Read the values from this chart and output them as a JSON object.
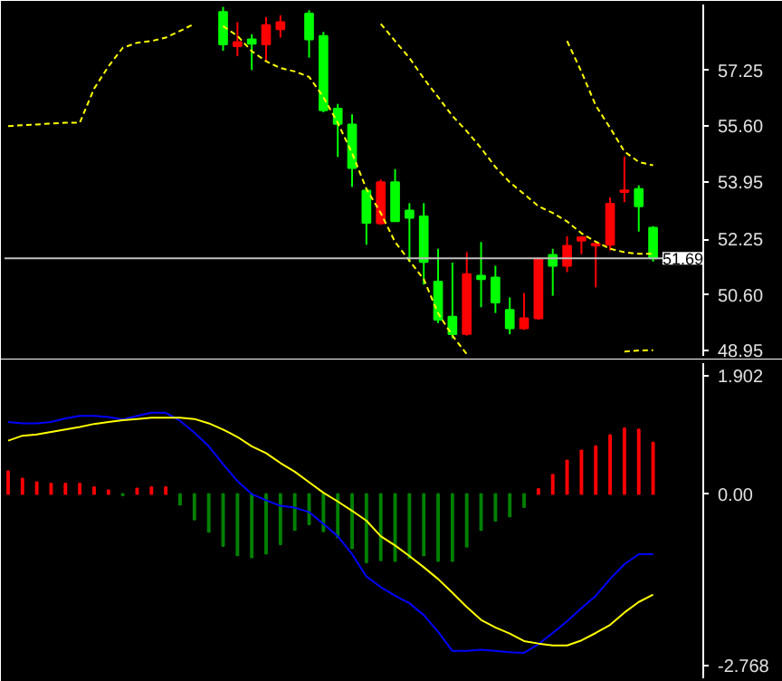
{
  "chart_data": [
    {
      "type": "candlestick",
      "categories": [
        null,
        null,
        null,
        null,
        null,
        null,
        null,
        null,
        null,
        null,
        null,
        null,
        null,
        null,
        null,
        null,
        null,
        null,
        null,
        null,
        null,
        null,
        null,
        null,
        null,
        null,
        null,
        null,
        null,
        null,
        null,
        null,
        null,
        null,
        null,
        null,
        null,
        null,
        null,
        null,
        null,
        null,
        null,
        null,
        null,
        null
      ],
      "ohlc": [
        null,
        null,
        null,
        null,
        null,
        null,
        null,
        null,
        null,
        null,
        null,
        null,
        null,
        null,
        null,
        [
          58.98,
          59.13,
          57.83,
          58.02
        ],
        [
          57.97,
          58.68,
          57.67,
          58.09
        ],
        [
          58.17,
          58.32,
          57.26,
          58.04
        ],
        [
          58.02,
          58.83,
          57.52,
          58.59
        ],
        [
          58.47,
          58.88,
          58.22,
          58.68
        ],
        null,
        [
          58.93,
          59.03,
          57.63,
          58.17
        ],
        [
          58.27,
          58.39,
          56.01,
          56.07
        ],
        [
          56.12,
          56.26,
          54.69,
          55.67
        ],
        [
          55.65,
          55.95,
          53.8,
          54.36
        ],
        [
          53.69,
          53.77,
          52.09,
          52.74
        ],
        [
          52.73,
          54.02,
          52.68,
          53.94
        ],
        [
          53.94,
          54.33,
          52.79,
          52.79
        ],
        [
          53.1,
          53.32,
          51.58,
          52.89
        ],
        [
          52.93,
          53.32,
          50.91,
          51.58
        ],
        [
          51.0,
          51.97,
          49.77,
          49.87
        ],
        [
          49.96,
          51.56,
          49.32,
          49.44
        ],
        [
          49.45,
          51.87,
          49.4,
          51.22
        ],
        [
          51.17,
          52.17,
          50.24,
          51.07
        ],
        [
          51.12,
          51.47,
          50.07,
          50.38
        ],
        [
          50.16,
          50.53,
          49.44,
          49.62
        ],
        [
          49.62,
          50.66,
          49.57,
          49.91
        ],
        [
          49.91,
          51.71,
          49.87,
          51.67
        ],
        [
          51.79,
          51.97,
          50.58,
          51.47
        ],
        [
          51.47,
          52.34,
          51.28,
          52.06
        ],
        [
          52.21,
          52.34,
          51.81,
          52.31
        ],
        [
          52.07,
          52.18,
          50.83,
          52.12
        ],
        [
          52.09,
          53.49,
          51.92,
          53.3
        ],
        [
          53.65,
          54.7,
          53.35,
          53.7
        ],
        [
          53.74,
          53.85,
          52.48,
          53.23
        ],
        [
          52.59,
          52.64,
          51.59,
          51.69
        ]
      ],
      "colors": [
        null,
        null,
        null,
        null,
        null,
        null,
        null,
        null,
        null,
        null,
        null,
        null,
        null,
        null,
        null,
        "#00ff00",
        "#ff0000",
        "#00ff00",
        "#ff0000",
        "#ff0000",
        null,
        "#00ff00",
        "#00ff00",
        "#00ff00",
        "#00ff00",
        "#00ff00",
        "#ff0000",
        "#00ff00",
        "#00ff00",
        "#00ff00",
        "#00ff00",
        "#00ff00",
        "#ff0000",
        "#00ff00",
        "#00ff00",
        "#00ff00",
        "#ff0000",
        "#ff0000",
        "#00ff00",
        "#ff0000",
        "#ff0000",
        "#ff0000",
        "#ff0000",
        "#ff0000",
        "#00ff00",
        "#00ff00"
      ],
      "series": [
        {
          "type": "line",
          "color": "#ffff00",
          "line_style": "dashed",
          "values": [
            55.6,
            55.63,
            55.65,
            55.68,
            55.7,
            55.7,
            56.71,
            57.37,
            57.92,
            58.07,
            58.12,
            58.22,
            58.42,
            58.63,
            null,
            58.56,
            58.27,
            57.82,
            57.52,
            57.32,
            57.22,
            57.06,
            56.46,
            55.7,
            54.8,
            53.74,
            53.03,
            52.17,
            51.62,
            51.07,
            50.06,
            49.4,
            48.85,
            null,
            null,
            null,
            null,
            null,
            null,
            null,
            null,
            null,
            null,
            null,
            null,
            null
          ]
        },
        {
          "type": "line",
          "color": "#ffff00",
          "line_style": "dashed",
          "values": [
            null,
            null,
            null,
            null,
            null,
            null,
            null,
            null,
            null,
            null,
            null,
            null,
            null,
            null,
            null,
            null,
            null,
            null,
            null,
            null,
            null,
            null,
            null,
            null,
            null,
            null,
            58.63,
            58.12,
            57.62,
            57.01,
            56.46,
            55.9,
            55.45,
            54.95,
            54.39,
            53.94,
            53.59,
            53.23,
            53.03,
            52.78,
            52.43,
            52.18,
            51.97,
            51.87,
            51.82,
            51.82
          ]
        },
        {
          "type": "line",
          "color": "#ffff00",
          "line_style": "dashed",
          "values": [
            null,
            null,
            null,
            null,
            null,
            null,
            null,
            null,
            null,
            null,
            null,
            null,
            null,
            null,
            null,
            null,
            null,
            null,
            null,
            null,
            null,
            null,
            null,
            null,
            null,
            null,
            null,
            null,
            null,
            null,
            null,
            null,
            null,
            null,
            null,
            null,
            null,
            null,
            null,
            58.12,
            57.21,
            56.21,
            55.55,
            54.85,
            54.54,
            54.44
          ]
        },
        {
          "type": "line",
          "color": "#ffff00",
          "line_style": "dashed",
          "values": [
            null,
            null,
            null,
            null,
            null,
            null,
            null,
            null,
            null,
            null,
            null,
            null,
            null,
            null,
            null,
            null,
            null,
            null,
            null,
            null,
            null,
            null,
            null,
            null,
            null,
            null,
            null,
            null,
            null,
            null,
            null,
            null,
            null,
            null,
            null,
            null,
            null,
            null,
            null,
            null,
            null,
            null,
            null,
            48.93,
            48.96,
            48.97
          ]
        }
      ],
      "ylim": [
        48.8,
        59.2
      ],
      "yticks": [
        {
          "value": 48.95,
          "label": "48.95"
        },
        {
          "value": 50.6,
          "label": "50.60"
        },
        {
          "value": 52.25,
          "label": "52.25"
        },
        {
          "value": 53.95,
          "label": "53.95"
        },
        {
          "value": 55.6,
          "label": "55.60"
        },
        {
          "value": 57.25,
          "label": "57.25"
        }
      ],
      "ref_lines": [
        {
          "axis": "y",
          "value": 51.69,
          "label": "51.69",
          "color": "#c0c0c0"
        }
      ],
      "tick_labels": "y",
      "grid": false
    },
    {
      "type": "bar",
      "categories": [
        null,
        null,
        null,
        null,
        null,
        null,
        null,
        null,
        null,
        null,
        null,
        null,
        null,
        null,
        null,
        null,
        null,
        null,
        null,
        null,
        null,
        null,
        null,
        null,
        null,
        null,
        null,
        null,
        null,
        null,
        null,
        null,
        null,
        null,
        null,
        null,
        null,
        null,
        null,
        null,
        null,
        null,
        null,
        null,
        null,
        null
      ],
      "values": [
        0.37,
        0.25,
        0.19,
        0.17,
        0.17,
        0.17,
        0.11,
        0.06,
        -0.02,
        0.09,
        0.11,
        0.11,
        -0.17,
        -0.41,
        -0.61,
        -0.84,
        -0.99,
        -1.02,
        -0.96,
        -0.81,
        -0.58,
        -0.49,
        -0.6,
        -0.7,
        -0.87,
        -1.1,
        -1.07,
        -1.08,
        -1.03,
        -0.99,
        -1.08,
        -1.08,
        -0.85,
        -0.58,
        -0.43,
        -0.36,
        -0.21,
        0.08,
        0.31,
        0.54,
        0.7,
        0.77,
        0.95,
        1.06,
        1.04,
        0.83
      ],
      "colors": [
        "#ff0000",
        "#ff0000",
        "#ff0000",
        "#ff0000",
        "#ff0000",
        "#ff0000",
        "#ff0000",
        "#ff0000",
        "#008000",
        "#ff0000",
        "#ff0000",
        "#ff0000",
        "#008000",
        "#008000",
        "#008000",
        "#008000",
        "#008000",
        "#008000",
        "#008000",
        "#008000",
        "#008000",
        "#008000",
        "#008000",
        "#008000",
        "#008000",
        "#008000",
        "#008000",
        "#008000",
        "#008000",
        "#008000",
        "#008000",
        "#008000",
        "#008000",
        "#008000",
        "#008000",
        "#008000",
        "#008000",
        "#ff0000",
        "#ff0000",
        "#ff0000",
        "#ff0000",
        "#ff0000",
        "#ff0000",
        "#ff0000",
        "#ff0000",
        "#ff0000"
      ],
      "series": [
        {
          "type": "line",
          "color": "#0000ff",
          "line_style": "solid",
          "values": [
            1.16,
            1.14,
            1.14,
            1.16,
            1.22,
            1.26,
            1.26,
            1.24,
            1.2,
            1.26,
            1.31,
            1.31,
            1.18,
            0.99,
            0.77,
            0.48,
            0.21,
            0.0,
            -0.1,
            -0.19,
            -0.22,
            -0.29,
            -0.48,
            -0.68,
            -0.97,
            -1.33,
            -1.5,
            -1.64,
            -1.76,
            -1.95,
            -2.22,
            -2.53,
            -2.53,
            -2.51,
            -2.53,
            -2.55,
            -2.56,
            -2.42,
            -2.24,
            -2.05,
            -1.84,
            -1.64,
            -1.37,
            -1.13,
            -0.97,
            -0.97
          ]
        },
        {
          "type": "line",
          "color": "#ffff00",
          "line_style": "solid",
          "values": [
            0.86,
            0.94,
            0.96,
            1.0,
            1.04,
            1.08,
            1.13,
            1.16,
            1.19,
            1.21,
            1.23,
            1.23,
            1.23,
            1.21,
            1.14,
            1.04,
            0.92,
            0.77,
            0.66,
            0.5,
            0.36,
            0.19,
            0.02,
            -0.12,
            -0.27,
            -0.43,
            -0.68,
            -0.83,
            -1.0,
            -1.18,
            -1.37,
            -1.59,
            -1.82,
            -2.03,
            -2.15,
            -2.25,
            -2.37,
            -2.41,
            -2.44,
            -2.44,
            -2.36,
            -2.24,
            -2.11,
            -1.91,
            -1.74,
            -1.62
          ]
        }
      ],
      "ylim": [
        -2.97,
        2.11
      ],
      "yticks": [
        {
          "value": 1.902,
          "label": "1.902"
        },
        {
          "value": 0,
          "label": "0.00"
        },
        {
          "value": -2.768,
          "label": "-2.768"
        }
      ],
      "tick_labels": "y",
      "grid": false
    }
  ]
}
